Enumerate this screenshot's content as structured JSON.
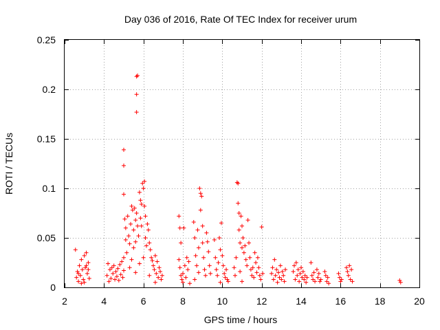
{
  "chart_data": {
    "type": "scatter",
    "title": "Day 036 of 2016, Rate Of TEC Index for receiver urum",
    "xlabel": "GPS time / hours",
    "ylabel": "ROTI / TECUs",
    "xlim": [
      2,
      20
    ],
    "ylim": [
      0,
      0.25
    ],
    "xticks": [
      2,
      4,
      6,
      8,
      10,
      12,
      14,
      16,
      18,
      20
    ],
    "yticks": [
      0,
      0.05,
      0.1,
      0.15,
      0.2,
      0.25
    ],
    "xtick_labels": [
      "2",
      "4",
      "6",
      "8",
      "10",
      "12",
      "14",
      "16",
      "18",
      "20"
    ],
    "ytick_labels": [
      "0",
      "0.05",
      "0.1",
      "0.15",
      "0.2",
      "0.25"
    ],
    "grid": true,
    "marker": "+",
    "color": "#ff0000",
    "series": [
      {
        "name": "ROTI",
        "points": [
          [
            2.55,
            0.038
          ],
          [
            2.6,
            0.01
          ],
          [
            2.65,
            0.016
          ],
          [
            2.7,
            0.006
          ],
          [
            2.75,
            0.022
          ],
          [
            2.8,
            0.012
          ],
          [
            2.85,
            0.028
          ],
          [
            2.9,
            0.018
          ],
          [
            2.95,
            0.008
          ],
          [
            3.0,
            0.032
          ],
          [
            3.05,
            0.02
          ],
          [
            3.1,
            0.035
          ],
          [
            3.15,
            0.014
          ],
          [
            3.2,
            0.025
          ],
          [
            3.25,
            0.009
          ],
          [
            2.85,
            0.004
          ],
          [
            3.0,
            0.005
          ],
          [
            3.1,
            0.022
          ],
          [
            2.7,
            0.014
          ],
          [
            3.2,
            0.018
          ],
          [
            4.15,
            0.012
          ],
          [
            4.2,
            0.024
          ],
          [
            4.25,
            0.006
          ],
          [
            4.3,
            0.018
          ],
          [
            4.35,
            0.009
          ],
          [
            4.4,
            0.02
          ],
          [
            4.45,
            0.014
          ],
          [
            4.5,
            0.022
          ],
          [
            4.55,
            0.008
          ],
          [
            4.6,
            0.016
          ],
          [
            4.65,
            0.011
          ],
          [
            4.7,
            0.019
          ],
          [
            4.75,
            0.007
          ],
          [
            4.8,
            0.023
          ],
          [
            4.85,
            0.013
          ],
          [
            4.9,
            0.026
          ],
          [
            4.95,
            0.01
          ],
          [
            5.0,
            0.03
          ],
          [
            5.0,
            0.017
          ],
          [
            5.0,
            0.139
          ],
          [
            5.0,
            0.123
          ],
          [
            5.0,
            0.094
          ],
          [
            5.05,
            0.069
          ],
          [
            5.1,
            0.048
          ],
          [
            5.1,
            0.06
          ],
          [
            5.15,
            0.035
          ],
          [
            5.2,
            0.072
          ],
          [
            5.25,
            0.052
          ],
          [
            5.3,
            0.044
          ],
          [
            5.35,
            0.064
          ],
          [
            5.4,
            0.082
          ],
          [
            5.4,
            0.028
          ],
          [
            5.45,
            0.078
          ],
          [
            5.5,
            0.058
          ],
          [
            5.5,
            0.04
          ],
          [
            5.55,
            0.08
          ],
          [
            5.6,
            0.068
          ],
          [
            5.6,
            0.046
          ],
          [
            5.65,
            0.075
          ],
          [
            5.65,
            0.213
          ],
          [
            5.7,
            0.214
          ],
          [
            5.65,
            0.195
          ],
          [
            5.65,
            0.177
          ],
          [
            5.7,
            0.062
          ],
          [
            5.75,
            0.052
          ],
          [
            5.8,
            0.096
          ],
          [
            5.85,
            0.088
          ],
          [
            5.85,
            0.07
          ],
          [
            5.9,
            0.084
          ],
          [
            5.9,
            0.062
          ],
          [
            5.95,
            0.105
          ],
          [
            6.0,
            0.1
          ],
          [
            6.05,
            0.107
          ],
          [
            6.05,
            0.082
          ],
          [
            6.1,
            0.072
          ],
          [
            6.1,
            0.05
          ],
          [
            6.0,
            0.03
          ],
          [
            6.15,
            0.042
          ],
          [
            5.3,
            0.02
          ],
          [
            5.6,
            0.015
          ],
          [
            5.8,
            0.024
          ],
          [
            6.2,
            0.064
          ],
          [
            6.25,
            0.058
          ],
          [
            6.3,
            0.045
          ],
          [
            6.35,
            0.038
          ],
          [
            6.4,
            0.03
          ],
          [
            6.45,
            0.027
          ],
          [
            6.5,
            0.022
          ],
          [
            6.55,
            0.018
          ],
          [
            6.6,
            0.032
          ],
          [
            6.65,
            0.014
          ],
          [
            6.7,
            0.026
          ],
          [
            6.75,
            0.01
          ],
          [
            6.8,
            0.02
          ],
          [
            6.85,
            0.016
          ],
          [
            6.9,
            0.008
          ],
          [
            6.95,
            0.012
          ],
          [
            6.6,
            0.005
          ],
          [
            6.3,
            0.012
          ],
          [
            7.8,
            0.072
          ],
          [
            7.85,
            0.06
          ],
          [
            7.9,
            0.045
          ],
          [
            7.8,
            0.028
          ],
          [
            7.85,
            0.02
          ],
          [
            7.9,
            0.012
          ],
          [
            7.95,
            0.008
          ],
          [
            8.0,
            0.014
          ],
          [
            8.05,
            0.06
          ],
          [
            8.1,
            0.022
          ],
          [
            8.15,
            0.01
          ],
          [
            8.2,
            0.03
          ],
          [
            8.25,
            0.018
          ],
          [
            8.3,
            0.026
          ],
          [
            8.35,
            0.004
          ],
          [
            8.0,
            0.005
          ],
          [
            8.55,
            0.066
          ],
          [
            8.6,
            0.05
          ],
          [
            8.65,
            0.032
          ],
          [
            8.7,
            0.022
          ],
          [
            8.75,
            0.058
          ],
          [
            8.8,
            0.04
          ],
          [
            8.85,
            0.1
          ],
          [
            8.9,
            0.095
          ],
          [
            8.9,
            0.078
          ],
          [
            8.95,
            0.092
          ],
          [
            9.0,
            0.062
          ],
          [
            9.0,
            0.045
          ],
          [
            9.05,
            0.03
          ],
          [
            9.1,
            0.018
          ],
          [
            9.15,
            0.012
          ],
          [
            9.2,
            0.055
          ],
          [
            9.25,
            0.046
          ],
          [
            9.3,
            0.036
          ],
          [
            9.35,
            0.022
          ],
          [
            9.4,
            0.014
          ],
          [
            8.6,
            0.008
          ],
          [
            8.8,
            0.015
          ],
          [
            9.6,
            0.048
          ],
          [
            9.65,
            0.03
          ],
          [
            9.7,
            0.018
          ],
          [
            9.75,
            0.012
          ],
          [
            9.8,
            0.025
          ],
          [
            9.85,
            0.05
          ],
          [
            9.9,
            0.038
          ],
          [
            9.95,
            0.065
          ],
          [
            10.0,
            0.032
          ],
          [
            10.05,
            0.022
          ],
          [
            10.1,
            0.014
          ],
          [
            10.15,
            0.01
          ],
          [
            10.2,
            0.018
          ],
          [
            10.25,
            0.008
          ],
          [
            10.3,
            0.006
          ],
          [
            9.9,
            0.005
          ],
          [
            10.6,
            0.02
          ],
          [
            10.65,
            0.012
          ],
          [
            10.7,
            0.03
          ],
          [
            10.75,
            0.106
          ],
          [
            10.8,
            0.105
          ],
          [
            10.8,
            0.085
          ],
          [
            10.85,
            0.075
          ],
          [
            10.85,
            0.058
          ],
          [
            10.9,
            0.045
          ],
          [
            10.95,
            0.072
          ],
          [
            11.0,
            0.062
          ],
          [
            11.0,
            0.04
          ],
          [
            11.05,
            0.05
          ],
          [
            11.1,
            0.035
          ],
          [
            11.15,
            0.042
          ],
          [
            11.2,
            0.028
          ],
          [
            11.25,
            0.022
          ],
          [
            11.3,
            0.068
          ],
          [
            11.35,
            0.045
          ],
          [
            11.4,
            0.03
          ],
          [
            11.45,
            0.018
          ],
          [
            11.5,
            0.012
          ],
          [
            11.55,
            0.02
          ],
          [
            11.6,
            0.01
          ],
          [
            11.65,
            0.035
          ],
          [
            11.7,
            0.025
          ],
          [
            11.75,
            0.015
          ],
          [
            11.8,
            0.03
          ],
          [
            11.85,
            0.02
          ],
          [
            11.9,
            0.012
          ],
          [
            11.95,
            0.008
          ],
          [
            12.0,
            0.061
          ],
          [
            12.05,
            0.014
          ],
          [
            11.0,
            0.006
          ],
          [
            10.9,
            0.016
          ],
          [
            12.5,
            0.014
          ],
          [
            12.55,
            0.02
          ],
          [
            12.6,
            0.008
          ],
          [
            12.65,
            0.028
          ],
          [
            12.7,
            0.012
          ],
          [
            12.75,
            0.018
          ],
          [
            12.8,
            0.005
          ],
          [
            12.85,
            0.015
          ],
          [
            12.9,
            0.01
          ],
          [
            12.95,
            0.022
          ],
          [
            13.0,
            0.008
          ],
          [
            13.05,
            0.016
          ],
          [
            13.1,
            0.012
          ],
          [
            13.15,
            0.006
          ],
          [
            13.2,
            0.018
          ],
          [
            13.6,
            0.016
          ],
          [
            13.65,
            0.022
          ],
          [
            13.7,
            0.008
          ],
          [
            13.75,
            0.025
          ],
          [
            13.8,
            0.012
          ],
          [
            13.85,
            0.018
          ],
          [
            13.9,
            0.006
          ],
          [
            13.95,
            0.014
          ],
          [
            14.0,
            0.02
          ],
          [
            14.05,
            0.01
          ],
          [
            14.1,
            0.016
          ],
          [
            14.15,
            0.008
          ],
          [
            14.2,
            0.012
          ],
          [
            14.25,
            0.005
          ],
          [
            14.3,
            0.01
          ],
          [
            14.5,
            0.025
          ],
          [
            14.55,
            0.012
          ],
          [
            14.6,
            0.008
          ],
          [
            14.65,
            0.015
          ],
          [
            14.7,
            0.006
          ],
          [
            14.8,
            0.018
          ],
          [
            14.85,
            0.01
          ],
          [
            14.9,
            0.014
          ],
          [
            14.95,
            0.006
          ],
          [
            15.0,
            0.008
          ],
          [
            15.2,
            0.016
          ],
          [
            15.25,
            0.012
          ],
          [
            15.3,
            0.006
          ],
          [
            15.35,
            0.01
          ],
          [
            15.4,
            0.004
          ],
          [
            15.9,
            0.014
          ],
          [
            15.95,
            0.01
          ],
          [
            16.0,
            0.006
          ],
          [
            16.05,
            0.008
          ],
          [
            16.3,
            0.02
          ],
          [
            16.35,
            0.016
          ],
          [
            16.4,
            0.012
          ],
          [
            16.45,
            0.022
          ],
          [
            16.5,
            0.008
          ],
          [
            16.55,
            0.018
          ],
          [
            16.6,
            0.006
          ],
          [
            19.0,
            0.007
          ],
          [
            19.05,
            0.005
          ]
        ]
      }
    ]
  }
}
